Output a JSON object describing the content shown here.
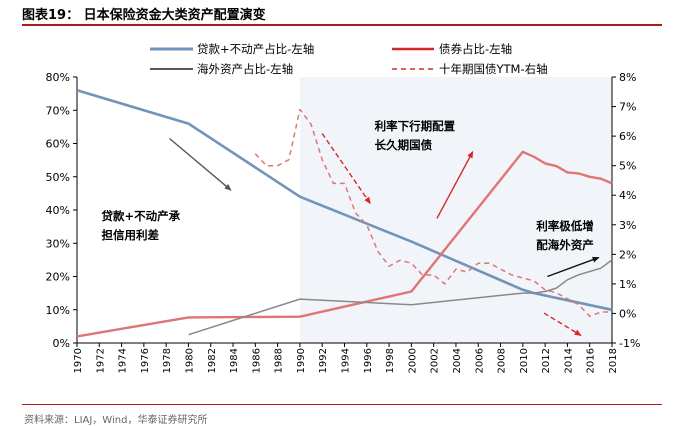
{
  "header": {
    "title": "图表19：  日本保险资金大类资产配置演变"
  },
  "footer": {
    "source": "资料来源：LIAJ，Wind，华泰证券研究所"
  },
  "colors": {
    "blue": "#7393b8",
    "red": "#e07575",
    "darkred": "#d62828",
    "gray": "#888888",
    "black": "#222222",
    "shade": "#f1f5f9",
    "rule": "#b11a1a"
  },
  "chart_data": {
    "type": "line",
    "x_range": [
      1970,
      2018
    ],
    "x_ticks": [
      1970,
      1972,
      1974,
      1976,
      1978,
      1980,
      1982,
      1984,
      1986,
      1988,
      1990,
      1992,
      1994,
      1996,
      1998,
      2000,
      2002,
      2004,
      2006,
      2008,
      2010,
      2012,
      2014,
      2016,
      2018
    ],
    "left_axis": {
      "ylim": [
        0,
        80
      ],
      "ticks": [
        "0%",
        "10%",
        "20%",
        "30%",
        "40%",
        "50%",
        "60%",
        "70%",
        "80%"
      ]
    },
    "right_axis": {
      "ylim": [
        -1,
        8
      ],
      "ticks": [
        "-1%",
        "0%",
        "1%",
        "2%",
        "3%",
        "4%",
        "5%",
        "6%",
        "7%",
        "8%"
      ]
    },
    "shaded_regions": [
      [
        1990,
        2011
      ],
      [
        2011,
        2018
      ]
    ],
    "legend": [
      {
        "key": "loans",
        "label": "贷款+不动产占比-左轴"
      },
      {
        "key": "bonds",
        "label": "债券占比-左轴"
      },
      {
        "key": "overseas",
        "label": "海外资产占比-左轴"
      },
      {
        "key": "jgb10y",
        "label": "十年期国债YTM-右轴"
      }
    ],
    "series": [
      {
        "key": "loans",
        "name": "贷款+不动产占比-左轴",
        "axis": "left",
        "style": "solid",
        "color": "#7393b8",
        "points": [
          [
            1970,
            76
          ],
          [
            1980,
            66
          ],
          [
            1990,
            44
          ],
          [
            2000,
            30.5
          ],
          [
            2010,
            16
          ],
          [
            2011,
            15
          ],
          [
            2018,
            10
          ]
        ]
      },
      {
        "key": "bonds",
        "name": "债券占比-左轴",
        "axis": "left",
        "style": "solid",
        "color": "#e07575",
        "points": [
          [
            1970,
            2
          ],
          [
            1980,
            7.7
          ],
          [
            1990,
            7.9
          ],
          [
            2000,
            15.5
          ],
          [
            2010,
            57.5
          ],
          [
            2011,
            56
          ],
          [
            2012,
            54
          ],
          [
            2013,
            53.2
          ],
          [
            2014,
            51.3
          ],
          [
            2015,
            51
          ],
          [
            2016,
            50
          ],
          [
            2017,
            49.4
          ],
          [
            2018,
            48
          ]
        ]
      },
      {
        "key": "overseas",
        "name": "海外资产占比-左轴",
        "axis": "left",
        "style": "solid",
        "color": "#888888",
        "points": [
          [
            1980,
            2.5
          ],
          [
            1990,
            13.2
          ],
          [
            2000,
            11.5
          ],
          [
            2010,
            15
          ],
          [
            2011,
            15
          ],
          [
            2012,
            15.5
          ],
          [
            2013,
            16.5
          ],
          [
            2014,
            19
          ],
          [
            2015,
            20.5
          ],
          [
            2016,
            21.5
          ],
          [
            2017,
            22.5
          ],
          [
            2018,
            25
          ]
        ]
      },
      {
        "key": "jgb10y",
        "name": "十年期国债YTM-右轴",
        "axis": "right",
        "style": "dashed",
        "color": "#e07575",
        "points": [
          [
            1986,
            5.4
          ],
          [
            1987,
            5.0
          ],
          [
            1988,
            5.0
          ],
          [
            1989,
            5.2
          ],
          [
            1990,
            6.9
          ],
          [
            1991,
            6.4
          ],
          [
            1992,
            5.2
          ],
          [
            1993,
            4.4
          ],
          [
            1994,
            4.4
          ],
          [
            1995,
            3.4
          ],
          [
            1996,
            3.0
          ],
          [
            1997,
            2.1
          ],
          [
            1998,
            1.6
          ],
          [
            1999,
            1.8
          ],
          [
            2000,
            1.7
          ],
          [
            2001,
            1.3
          ],
          [
            2002,
            1.3
          ],
          [
            2003,
            1.0
          ],
          [
            2004,
            1.5
          ],
          [
            2005,
            1.4
          ],
          [
            2006,
            1.7
          ],
          [
            2007,
            1.7
          ],
          [
            2008,
            1.5
          ],
          [
            2009,
            1.3
          ],
          [
            2010,
            1.2
          ],
          [
            2011,
            1.1
          ],
          [
            2012,
            0.8
          ],
          [
            2013,
            0.7
          ],
          [
            2014,
            0.5
          ],
          [
            2015,
            0.3
          ],
          [
            2016,
            -0.1
          ],
          [
            2017,
            0.05
          ],
          [
            2018,
            0.05
          ]
        ]
      }
    ],
    "annotations": [
      {
        "lines": [
          "利率下行期配置",
          "长久期国债"
        ],
        "at": [
          1996.7,
          64
        ]
      },
      {
        "lines": [
          "贷款+不动产承",
          "担信用利差"
        ],
        "at": [
          1972.2,
          37
        ]
      },
      {
        "lines": [
          "利率极低增",
          "配海外资产"
        ],
        "at": [
          2011.2,
          34
        ]
      }
    ],
    "arrows": [
      {
        "from": [
          1978.3,
          61.5
        ],
        "to": [
          1983.8,
          46
        ],
        "color": "#555555",
        "style": "solid"
      },
      {
        "from": [
          1992.0,
          63
        ],
        "to": [
          1996.3,
          42
        ],
        "color": "#d62828",
        "style": "dashed"
      },
      {
        "from": [
          2002.3,
          37.5
        ],
        "to": [
          2005.5,
          57.5
        ],
        "color": "#d62828",
        "style": "solid"
      },
      {
        "from": [
          2012.2,
          20
        ],
        "to": [
          2016.8,
          25.7
        ],
        "color": "#111111",
        "style": "solid"
      },
      {
        "from": [
          2011.9,
          9
        ],
        "to": [
          2015.2,
          2.3
        ],
        "color": "#d62828",
        "style": "dashed"
      }
    ]
  }
}
